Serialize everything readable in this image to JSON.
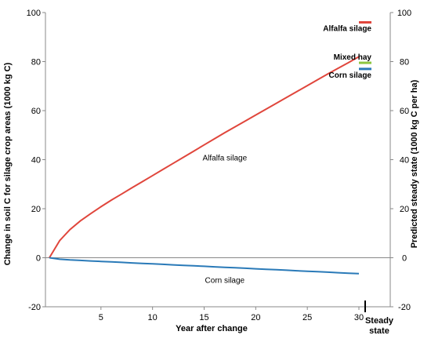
{
  "chart_data": {
    "type": "line",
    "xlabel": "Year after change",
    "ylabel_left": "Change in soil C for silage crop areas (1000 kg C)",
    "ylabel_right": "Predicted steady state (1000 kg C per ha)",
    "steady_state_label": [
      "Steady",
      "state"
    ],
    "xlim": [
      0,
      31.2
    ],
    "ylim": [
      -20,
      100
    ],
    "x_ticks": [
      5,
      10,
      15,
      20,
      25,
      30
    ],
    "y_ticks": [
      -20,
      0,
      20,
      40,
      60,
      80,
      100
    ],
    "series": [
      {
        "name": "Alfalfa silage",
        "color": "#e0463c",
        "x": [
          0,
          1,
          2,
          3,
          4,
          5,
          6,
          7,
          8,
          9,
          10,
          11,
          12,
          13,
          14,
          15,
          16,
          17,
          18,
          19,
          20,
          21,
          22,
          23,
          24,
          25,
          26,
          27,
          28,
          29,
          30
        ],
        "y": [
          0,
          7,
          11.5,
          15,
          18,
          20.8,
          23.5,
          26,
          28.5,
          31,
          33.5,
          36,
          38.5,
          41,
          43.5,
          46,
          48.5,
          51,
          53.4,
          55.8,
          58.2,
          60.6,
          63,
          65.4,
          67.8,
          70.2,
          72.6,
          75,
          77.3,
          79.6,
          82
        ]
      },
      {
        "name": "Corn silage",
        "color": "#2a7ab8",
        "x": [
          0,
          1,
          2,
          3,
          4,
          5,
          6,
          7,
          8,
          9,
          10,
          11,
          12,
          13,
          14,
          15,
          16,
          17,
          18,
          19,
          20,
          21,
          22,
          23,
          24,
          25,
          26,
          27,
          28,
          29,
          30
        ],
        "y": [
          0,
          -0.6,
          -0.9,
          -1.1,
          -1.3,
          -1.5,
          -1.7,
          -1.9,
          -2.1,
          -2.3,
          -2.5,
          -2.7,
          -2.9,
          -3.1,
          -3.3,
          -3.5,
          -3.7,
          -3.9,
          -4.1,
          -4.3,
          -4.5,
          -4.7,
          -4.9,
          -5.1,
          -5.3,
          -5.5,
          -5.7,
          -5.9,
          -6.1,
          -6.3,
          -6.5
        ]
      }
    ],
    "annotations": [
      {
        "text": "Alfalfa silage",
        "x": 17,
        "y": 41
      },
      {
        "text": "Corn silage",
        "x": 17,
        "y": -9
      }
    ],
    "steady_state": [
      {
        "name": "Alfalfa silage",
        "value": 96,
        "color": "#e0463c"
      },
      {
        "name": "Mixed hay",
        "value": 79.5,
        "color": "#8dc63f"
      },
      {
        "name": "Corn silage",
        "value": 77,
        "color": "#2a7ab8"
      }
    ],
    "grid": false
  }
}
